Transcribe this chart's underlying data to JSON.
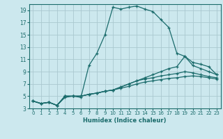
{
  "xlabel": "Humidex (Indice chaleur)",
  "bg_color": "#cce8ee",
  "grid_color": "#aac8d0",
  "line_color": "#1a6b6b",
  "xlim": [
    -0.5,
    23.5
  ],
  "ylim": [
    3,
    20
  ],
  "xticks": [
    0,
    1,
    2,
    3,
    4,
    5,
    6,
    7,
    8,
    9,
    10,
    11,
    12,
    13,
    14,
    15,
    16,
    17,
    18,
    19,
    20,
    21,
    22,
    23
  ],
  "yticks": [
    3,
    5,
    7,
    9,
    11,
    13,
    15,
    17,
    19
  ],
  "line1_x": [
    0,
    1,
    2,
    3,
    4,
    5,
    6,
    7,
    8,
    9,
    10,
    11,
    12,
    13,
    14,
    15,
    16,
    17,
    18,
    19,
    20,
    21,
    22,
    23
  ],
  "line1_y": [
    4.2,
    3.8,
    4.0,
    3.5,
    4.8,
    5.0,
    4.8,
    10.0,
    12.0,
    15.0,
    19.5,
    19.2,
    19.5,
    19.7,
    19.2,
    18.8,
    17.5,
    16.2,
    12.0,
    11.5,
    10.5,
    10.2,
    9.8,
    8.5
  ],
  "line2_x": [
    0,
    1,
    2,
    3,
    4,
    5,
    6,
    7,
    8,
    9,
    10,
    11,
    12,
    13,
    14,
    15,
    16,
    17,
    18,
    19,
    20,
    21,
    22,
    23
  ],
  "line2_y": [
    4.2,
    3.8,
    4.0,
    3.5,
    5.0,
    5.0,
    5.0,
    5.3,
    5.5,
    5.8,
    6.0,
    6.5,
    7.0,
    7.5,
    8.0,
    8.5,
    9.0,
    9.5,
    9.8,
    11.5,
    10.0,
    9.5,
    9.0,
    8.5
  ],
  "line3_x": [
    0,
    1,
    2,
    3,
    4,
    5,
    6,
    7,
    8,
    9,
    10,
    11,
    12,
    13,
    14,
    15,
    16,
    17,
    18,
    19,
    20,
    21,
    22,
    23
  ],
  "line3_y": [
    4.2,
    3.8,
    4.0,
    3.5,
    5.0,
    5.0,
    5.0,
    5.3,
    5.5,
    5.8,
    6.0,
    6.5,
    7.0,
    7.5,
    7.8,
    8.0,
    8.3,
    8.5,
    8.7,
    9.0,
    8.8,
    8.5,
    8.2,
    8.0
  ],
  "line4_x": [
    0,
    1,
    2,
    3,
    4,
    5,
    6,
    7,
    8,
    9,
    10,
    11,
    12,
    13,
    14,
    15,
    16,
    17,
    18,
    19,
    20,
    21,
    22,
    23
  ],
  "line4_y": [
    4.2,
    3.8,
    4.0,
    3.5,
    5.0,
    5.0,
    5.0,
    5.3,
    5.5,
    5.8,
    6.0,
    6.3,
    6.6,
    7.0,
    7.3,
    7.5,
    7.7,
    7.9,
    8.0,
    8.2,
    8.3,
    8.2,
    8.0,
    7.8
  ]
}
